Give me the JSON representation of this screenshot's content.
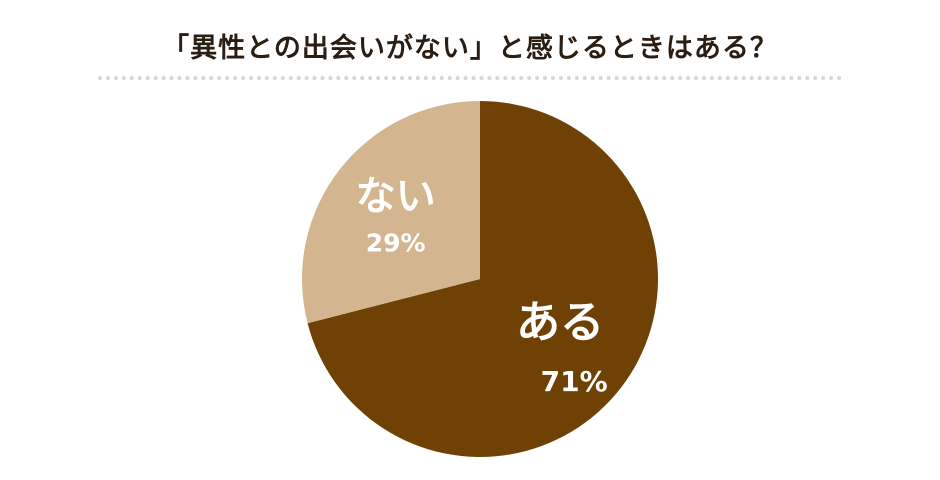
{
  "header": {
    "title": "「異性との出会いがない」と感じるときはある？"
  },
  "chart_data": {
    "type": "pie",
    "title": "「異性との出会いがない」と感じるときはある？",
    "slices": [
      {
        "label": "ある",
        "value": 71,
        "value_label": "71%",
        "color": "#6f4105"
      },
      {
        "label": "ない",
        "value": 29,
        "value_label": "29%",
        "color": "#d3b68f"
      }
    ],
    "legend": "none"
  }
}
